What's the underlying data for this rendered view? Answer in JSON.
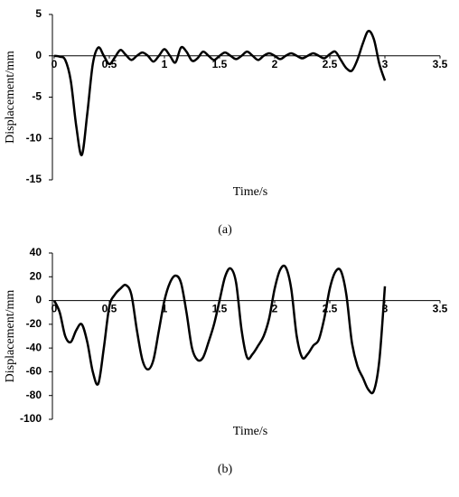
{
  "chart_data": [
    {
      "type": "line",
      "ylabel": "Displacement/mm",
      "xlabel": "Time/s",
      "caption": "(a)",
      "color": "#000000",
      "xlim": [
        0,
        3.5
      ],
      "xticks": [
        0,
        0.5,
        1,
        1.5,
        2,
        2.5,
        3,
        3.5
      ],
      "ylim": [
        -15,
        5
      ],
      "yticks": [
        5,
        0,
        -5,
        -10,
        -15
      ],
      "x": [
        0,
        0.05,
        0.1,
        0.15,
        0.2,
        0.25,
        0.3,
        0.35,
        0.4,
        0.45,
        0.5,
        0.55,
        0.6,
        0.65,
        0.7,
        0.75,
        0.8,
        0.85,
        0.9,
        0.95,
        1.0,
        1.05,
        1.1,
        1.15,
        1.2,
        1.25,
        1.3,
        1.35,
        1.4,
        1.45,
        1.5,
        1.55,
        1.6,
        1.65,
        1.7,
        1.75,
        1.8,
        1.85,
        1.9,
        1.95,
        2.0,
        2.05,
        2.1,
        2.15,
        2.2,
        2.25,
        2.3,
        2.35,
        2.4,
        2.45,
        2.5,
        2.55,
        2.6,
        2.65,
        2.7,
        2.75,
        2.8,
        2.85,
        2.9,
        2.95,
        3.0
      ],
      "values": [
        0,
        -0.1,
        -0.5,
        -3,
        -8.5,
        -12,
        -7,
        -1,
        1,
        0,
        -1,
        -0.2,
        0.7,
        0.1,
        -0.5,
        0,
        0.4,
        0,
        -0.7,
        0,
        0.8,
        0,
        -0.8,
        1,
        0.5,
        -0.6,
        -0.3,
        0.5,
        0,
        -0.5,
        0,
        0.4,
        0,
        -0.4,
        0,
        0.5,
        0,
        -0.5,
        0,
        0.3,
        0,
        -0.4,
        0,
        0.3,
        0,
        -0.3,
        0,
        0.3,
        0,
        -0.3,
        0.2,
        0.5,
        -0.5,
        -1.5,
        -1.8,
        -0.5,
        1.5,
        3,
        2,
        -1,
        -3
      ]
    },
    {
      "type": "line",
      "ylabel": "Displacement/mm",
      "xlabel": "Time/s",
      "caption": "(b)",
      "color": "#000000",
      "xlim": [
        0,
        3.5
      ],
      "xticks": [
        0,
        0.5,
        1,
        1.5,
        2,
        2.5,
        3,
        3.5
      ],
      "ylim": [
        -100,
        40
      ],
      "yticks": [
        40,
        20,
        0,
        -20,
        -40,
        -60,
        -80,
        -100
      ],
      "x": [
        0,
        0.05,
        0.1,
        0.15,
        0.2,
        0.25,
        0.3,
        0.35,
        0.4,
        0.45,
        0.5,
        0.55,
        0.6,
        0.65,
        0.7,
        0.75,
        0.8,
        0.85,
        0.9,
        0.95,
        1.0,
        1.05,
        1.1,
        1.15,
        1.2,
        1.25,
        1.3,
        1.35,
        1.4,
        1.45,
        1.5,
        1.55,
        1.6,
        1.65,
        1.7,
        1.75,
        1.8,
        1.85,
        1.9,
        1.95,
        2.0,
        2.05,
        2.1,
        2.15,
        2.2,
        2.25,
        2.3,
        2.35,
        2.4,
        2.45,
        2.5,
        2.55,
        2.6,
        2.65,
        2.7,
        2.75,
        2.8,
        2.85,
        2.9,
        2.95,
        3.0
      ],
      "values": [
        0,
        -10,
        -30,
        -35,
        -25,
        -20,
        -35,
        -60,
        -70,
        -40,
        -5,
        5,
        10,
        13,
        5,
        -25,
        -50,
        -58,
        -50,
        -25,
        0,
        15,
        21,
        15,
        -10,
        -40,
        -50,
        -48,
        -35,
        -20,
        0,
        20,
        27,
        15,
        -25,
        -48,
        -45,
        -38,
        -30,
        -15,
        10,
        26,
        28,
        10,
        -30,
        -48,
        -45,
        -38,
        -33,
        -15,
        10,
        24,
        25,
        5,
        -35,
        -55,
        -65,
        -75,
        -76,
        -50,
        12
      ]
    }
  ]
}
